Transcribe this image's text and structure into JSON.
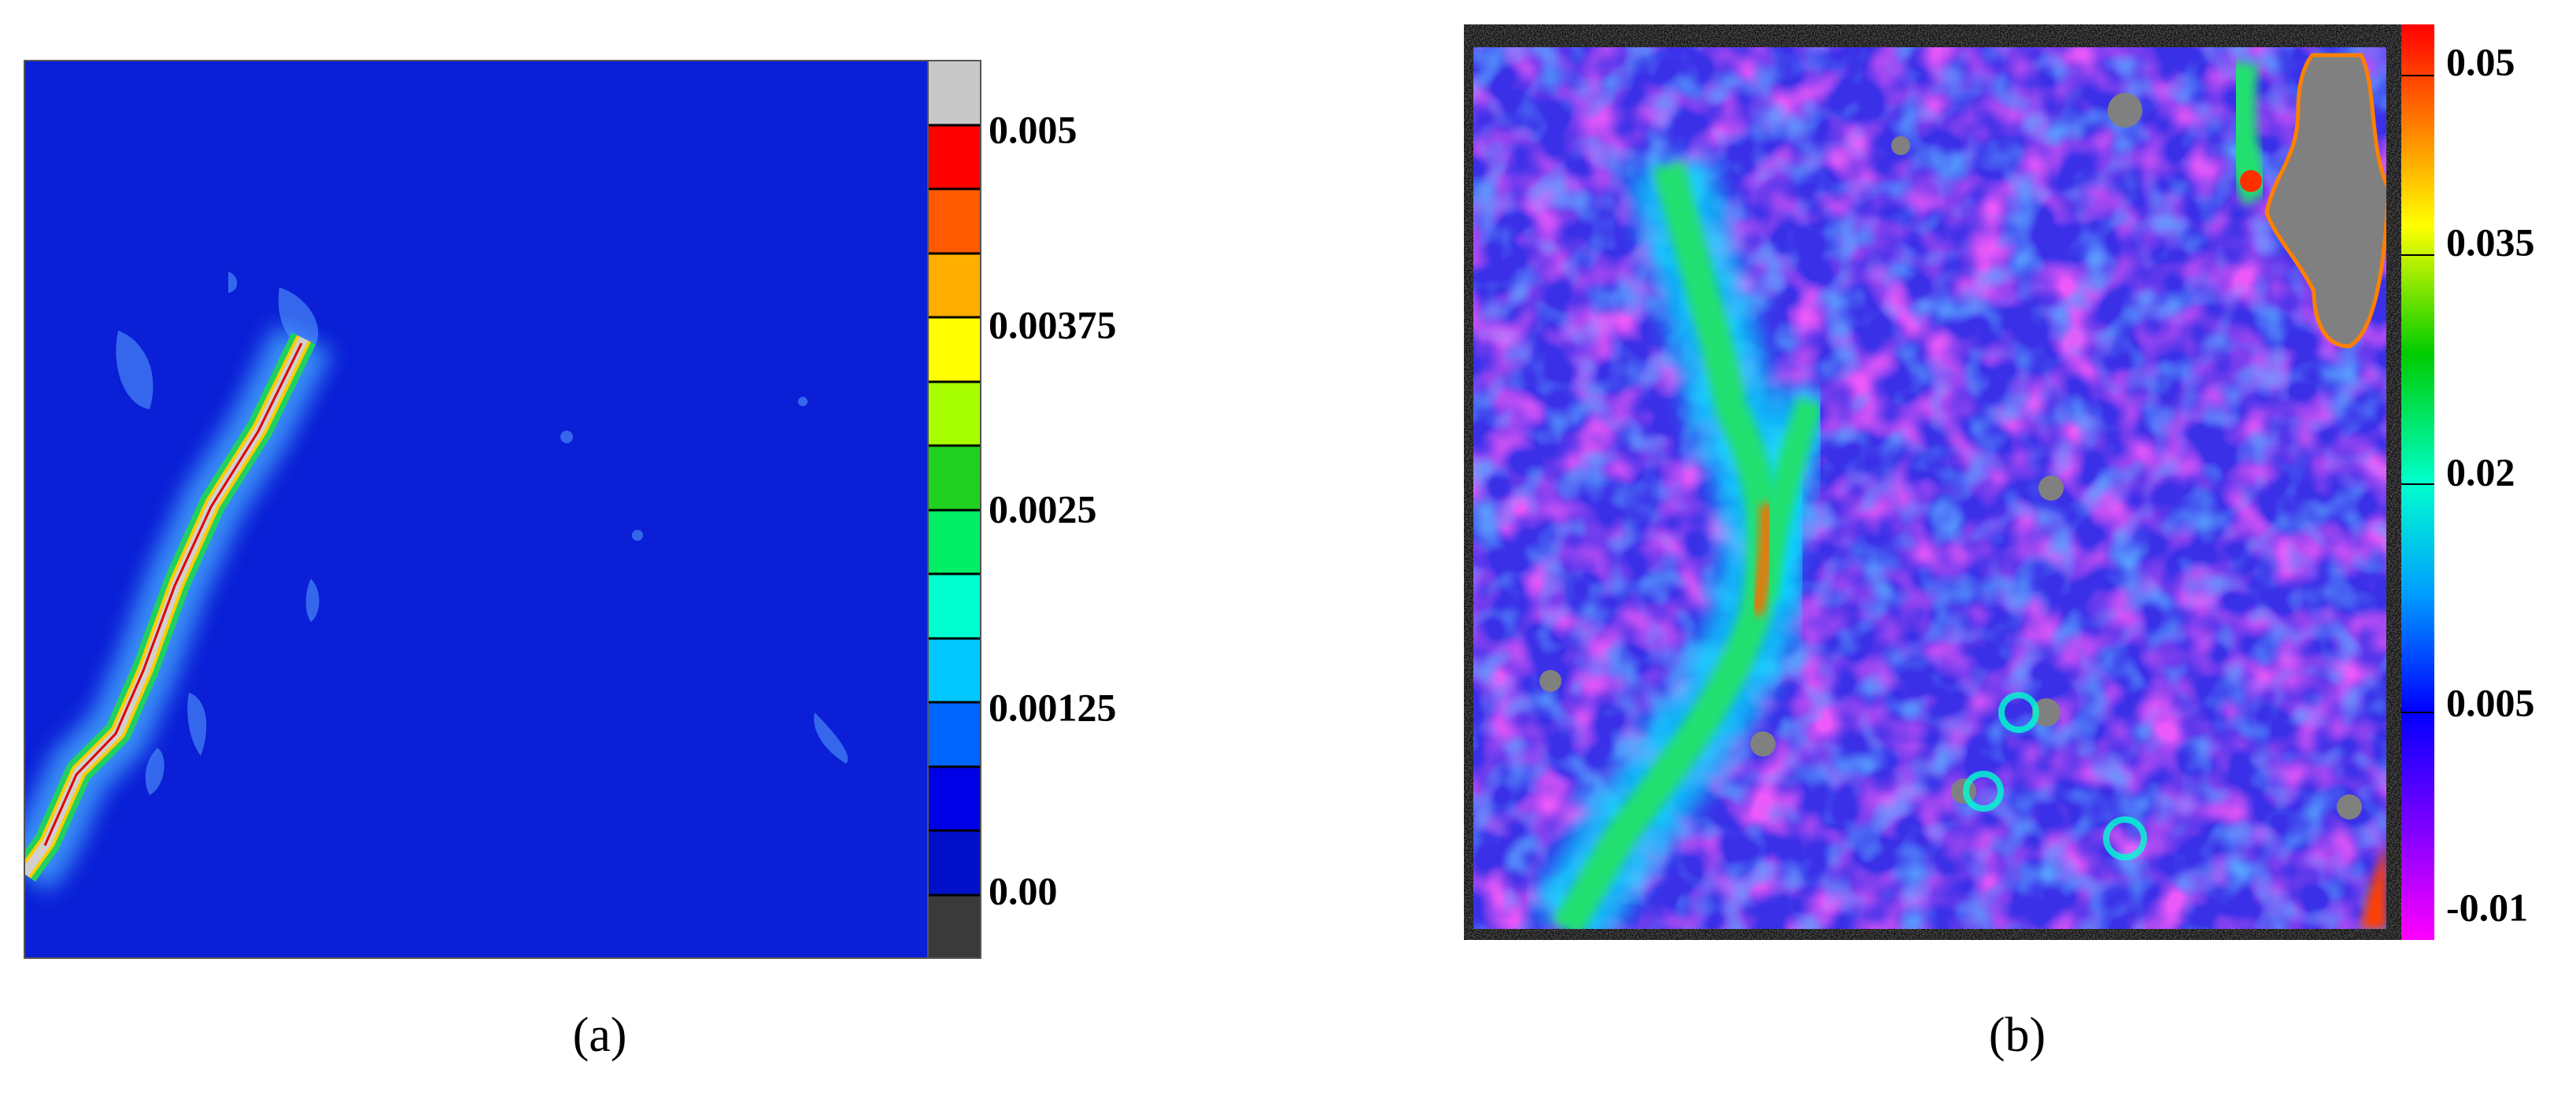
{
  "panels": [
    {
      "colorbar": {
        "labels": [
          "0.005",
          "0.00375",
          "0.0025",
          "0.00125",
          "0.00"
        ]
      },
      "caption": "(a)"
    },
    {
      "colorbar": {
        "labels": [
          "0.05",
          "0.035",
          "0.02",
          "0.005",
          "-0.01"
        ]
      },
      "caption": "(b)"
    }
  ]
}
